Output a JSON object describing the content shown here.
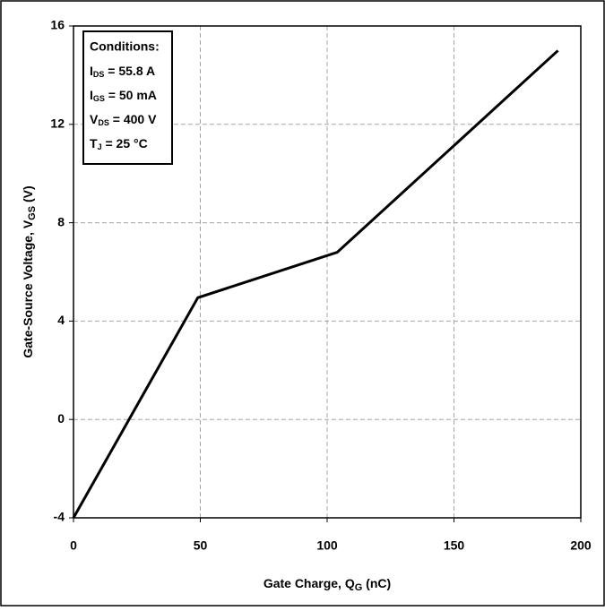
{
  "chart_data": {
    "type": "line",
    "xlabel": {
      "text": "Gate Charge, Q",
      "sub": "G",
      "suffix": " (nC)"
    },
    "ylabel": {
      "text": "Gate-Source Voltage, V",
      "sub": "GS",
      "suffix": " (V)"
    },
    "annotation": {
      "title": "Conditions:",
      "lines": [
        {
          "text": "I",
          "sub": "DS",
          "suffix": " = 55.8 A"
        },
        {
          "text": "I",
          "sub": "GS",
          "suffix": " = 50 mA"
        },
        {
          "text": "V",
          "sub": "DS",
          "suffix": " = 400 V"
        },
        {
          "text": "T",
          "sub": "J",
          "suffix": " = 25 °C"
        }
      ]
    },
    "x": [
      0,
      49,
      104,
      191
    ],
    "series": [
      {
        "color": "#000000",
        "values": [
          -4,
          4.95,
          6.8,
          15
        ]
      }
    ],
    "xlim": [
      0,
      200
    ],
    "xticks": [
      0,
      50,
      100,
      150,
      200
    ],
    "ylim": [
      -4,
      16
    ],
    "yticks": [
      -4,
      0,
      4,
      8,
      12,
      16
    ],
    "grid": true
  }
}
